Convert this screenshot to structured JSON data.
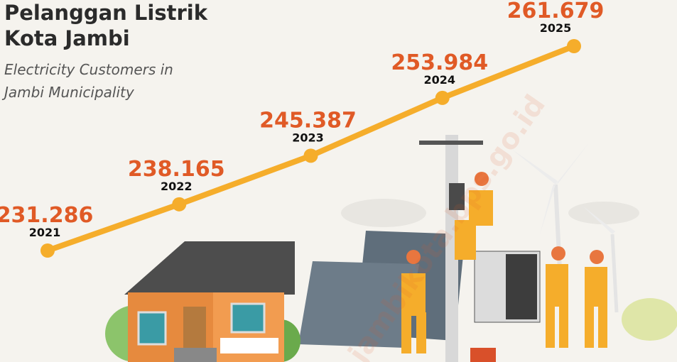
{
  "chart_data": {
    "type": "line",
    "title": "Pelanggan Listrik Kota Jambi",
    "subtitle": "Electricity Customers in Jambi Municipality",
    "watermark": "jambikota.bps.go.id",
    "categories": [
      "2021",
      "2022",
      "2023",
      "2024",
      "2025"
    ],
    "values": [
      231286,
      238165,
      245387,
      253984,
      261679
    ],
    "value_labels": [
      "231.286",
      "238.165",
      "245.387",
      "253.984",
      "261.679"
    ],
    "color": "#f5ad2b",
    "label_color": "#e05a26"
  }
}
